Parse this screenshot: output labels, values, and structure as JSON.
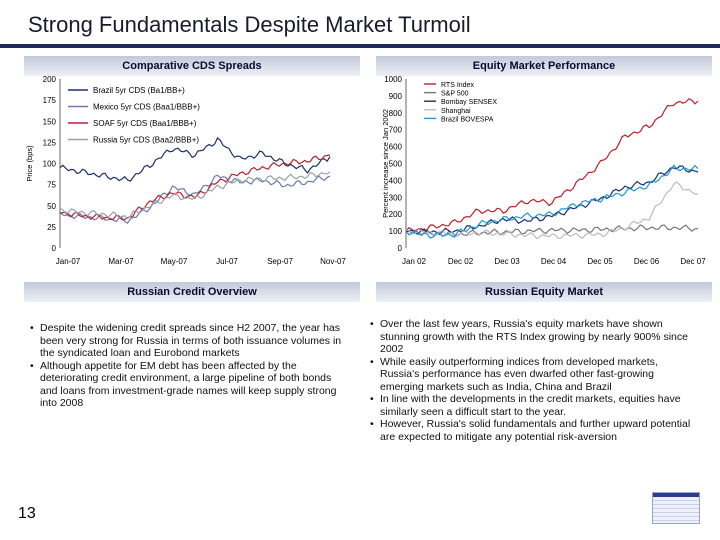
{
  "slide": {
    "title": "Strong Fundamentals Despite Market Turmoil",
    "page_number": "13"
  },
  "panels": {
    "cds_header": "Comparative CDS Spreads",
    "equity_header": "Equity Market Performance",
    "credit_header": "Russian Credit Overview",
    "equity_text_header": "Russian Equity Market"
  },
  "credit_bullets": [
    "Despite the widening credit spreads since H2 2007, the year has been very strong for Russia in terms of both issuance volumes in the syndicated loan and Eurobond markets",
    "Although appetite for EM debt has been affected by the deteriorating credit environment, a large pipeline of both bonds and loans from investment-grade names will keep supply strong into 2008"
  ],
  "equity_bullets": [
    "Over the last few years, Russia's equity markets have shown stunning growth with the RTS Index growing by nearly 900% since 2002",
    "While easily outperforming indices from developed markets, Russia's performance has even dwarfed other fast-growing emerging markets such as India, China and Brazil",
    "In line with the developments in the credit markets, equities have similarly seen a difficult start to the year.",
    "However, Russia's solid fundamentals and further upward potential are expected to mitigate any potential risk-aversion"
  ],
  "chart_data": [
    {
      "type": "line",
      "ylabel": "Price (bps)",
      "ylim": [
        0,
        200
      ],
      "yticks": [
        0,
        25,
        50,
        75,
        100,
        125,
        150,
        175,
        200
      ],
      "xlim": [
        "2007-01",
        "2009-01"
      ],
      "xticks": [
        "Jan-07",
        "Mar-07",
        "May-07",
        "Jul-07",
        "Sep-07",
        "Nov-07",
        "Jan-08"
      ],
      "legend": "top-left",
      "series": [
        {
          "name": "Brazil 5yr CDS (Ba1/BB+)",
          "color": "#1f2f6e",
          "x": [
            0,
            1,
            2,
            3,
            4,
            5,
            6,
            7,
            8,
            9,
            10,
            11,
            12
          ],
          "values": [
            95,
            90,
            85,
            80,
            98,
            118,
            110,
            128,
            105,
            112,
            100,
            92,
            108
          ]
        },
        {
          "name": "Mexico 5yr CDS (Baa1/BBB+)",
          "color": "#6a7cae",
          "x": [
            0,
            1,
            2,
            3,
            4,
            5,
            6,
            7,
            8,
            9,
            10,
            11,
            12
          ],
          "values": [
            40,
            37,
            35,
            32,
            48,
            72,
            63,
            85,
            78,
            80,
            74,
            78,
            85
          ]
        },
        {
          "name": "SOAF 5yr CDS (Baa1/BBB+)",
          "color": "#b8232b",
          "x": [
            0,
            1,
            2,
            3,
            4,
            5,
            6,
            7,
            8,
            9,
            10,
            11,
            12
          ],
          "values": [
            42,
            38,
            36,
            35,
            55,
            65,
            60,
            78,
            88,
            95,
            100,
            103,
            110
          ]
        },
        {
          "name": "Russia 5yr CDS (Baa2/BBB+)",
          "color": "#9aa0a8",
          "x": [
            0,
            1,
            2,
            3,
            4,
            5,
            6,
            7,
            8,
            9,
            10,
            11,
            12
          ],
          "values": [
            45,
            42,
            40,
            37,
            50,
            62,
            58,
            72,
            80,
            82,
            83,
            85,
            90
          ]
        }
      ]
    },
    {
      "type": "line",
      "ylabel": "Percent increase since Jan 2002",
      "ylim": [
        0,
        1000
      ],
      "yticks": [
        0,
        100,
        200,
        300,
        400,
        500,
        600,
        700,
        800,
        900,
        1000
      ],
      "xticks": [
        "Jan 02",
        "Dec 02",
        "Dec 03",
        "Dec 04",
        "Dec 05",
        "Dec 06",
        "Dec 07"
      ],
      "legend": "top-right",
      "series": [
        {
          "name": "RTS Index",
          "color": "#c0202a",
          "x": [
            0,
            0.5,
            1,
            1.5,
            2,
            2.5,
            3,
            3.5,
            4,
            4.5,
            5,
            5.5,
            6
          ],
          "values": [
            100,
            120,
            150,
            220,
            220,
            280,
            270,
            380,
            500,
            660,
            720,
            860,
            870
          ]
        },
        {
          "name": "S&P 500",
          "color": "#777777",
          "x": [
            0,
            0.5,
            1,
            1.5,
            2,
            2.5,
            3,
            3.5,
            4,
            4.5,
            5,
            5.5,
            6
          ],
          "values": [
            100,
            85,
            80,
            90,
            95,
            100,
            105,
            105,
            110,
            115,
            120,
            120,
            115
          ]
        },
        {
          "name": "Bombay SENSEX",
          "color": "#1f2f6e",
          "x": [
            0,
            0.5,
            1,
            1.5,
            2,
            2.5,
            3,
            3.5,
            4,
            4.5,
            5,
            5.5,
            6
          ],
          "values": [
            100,
            95,
            100,
            130,
            170,
            160,
            190,
            240,
            290,
            360,
            390,
            480,
            450
          ]
        },
        {
          "name": "Shanghai",
          "color": "#b8bcc4",
          "x": [
            0,
            0.5,
            1,
            1.5,
            2,
            2.5,
            3,
            3.5,
            4,
            4.5,
            5,
            5.5,
            6
          ],
          "values": [
            100,
            90,
            85,
            90,
            85,
            75,
            70,
            75,
            80,
            120,
            180,
            380,
            320
          ]
        },
        {
          "name": "Brazil BOVESPA",
          "color": "#1a9ad6",
          "x": [
            0,
            0.5,
            1,
            1.5,
            2,
            2.5,
            3,
            3.5,
            4,
            4.5,
            5,
            5.5,
            6
          ],
          "values": [
            100,
            75,
            80,
            140,
            170,
            190,
            200,
            260,
            290,
            330,
            370,
            470,
            470
          ]
        }
      ]
    }
  ]
}
